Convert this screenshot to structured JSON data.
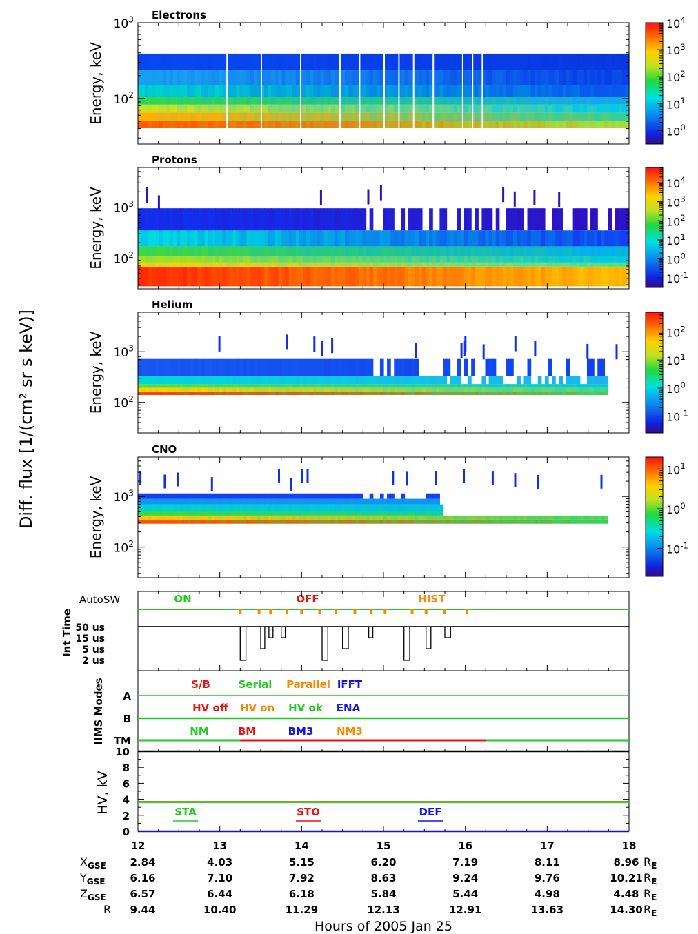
{
  "figure": {
    "ylabel": "Diff. flux [1/(cm² sr s keV)]",
    "xlabel": "Hours of 2005 Jan 25"
  },
  "colors": {
    "on": "#22cc22",
    "off": "#ee1111",
    "hist": "#ff8800",
    "blue": "#1111ee",
    "ok": "#22cc22",
    "axis": "#000000"
  },
  "chart_data": [
    {
      "type": "heatmap",
      "title": "Electrons",
      "ylabel": "Energy, keV",
      "yscale": "log",
      "ylim": [
        25,
        1000
      ],
      "y_ticks": [
        {
          "label": "10",
          "exp": "2",
          "value": 100
        },
        {
          "label": "10",
          "exp": "3",
          "value": 1000
        }
      ],
      "x": [
        12,
        18
      ],
      "energy_bands_keV": [
        [
          41,
          51
        ],
        [
          51,
          65
        ],
        [
          65,
          83
        ],
        [
          83,
          105
        ],
        [
          105,
          150
        ],
        [
          150,
          240
        ],
        [
          240,
          390
        ]
      ],
      "band_colors_start": [
        "#ff5a00",
        "#ffb000",
        "#d0e020",
        "#30d850",
        "#00d0d0",
        "#18a0f0",
        "#0848f0"
      ],
      "band_colors_end": [
        "#a0e040",
        "#30d0a0",
        "#00c8e8",
        "#10a8f0",
        "#0858f0",
        "#0840e8",
        "#0838e0"
      ],
      "colorbar": {
        "ticks": [
          {
            "label": "10",
            "exp": "0"
          },
          {
            "label": "10",
            "exp": "1"
          },
          {
            "label": "10",
            "exp": "2"
          },
          {
            "label": "10",
            "exp": "3"
          },
          {
            "label": "10",
            "exp": "4"
          }
        ],
        "range_log": [
          -0.5,
          4
        ]
      }
    },
    {
      "type": "heatmap",
      "title": "Protons",
      "ylabel": "Energy, keV",
      "yscale": "log",
      "ylim": [
        25,
        6000
      ],
      "y_ticks": [
        {
          "label": "10",
          "exp": "2",
          "value": 100
        },
        {
          "label": "10",
          "exp": "3",
          "value": 1000
        }
      ],
      "x": [
        12,
        18
      ],
      "energy_bands_keV": [
        [
          28,
          68
        ],
        [
          68,
          82
        ],
        [
          82,
          110
        ],
        [
          110,
          170
        ],
        [
          170,
          350
        ],
        [
          350,
          950
        ]
      ],
      "band_colors_start": [
        "#ff2a00",
        "#ffd000",
        "#a8e020",
        "#40d840",
        "#00d8e0",
        "#1030f0"
      ],
      "band_colors_end": [
        "#ffc000",
        "#40e0a0",
        "#00c8e0",
        "#00b0f0",
        "#1040f0",
        "#3010c0"
      ],
      "colorbar": {
        "ticks": [
          {
            "label": "10",
            "exp": "-1"
          },
          {
            "label": "10",
            "exp": "0"
          },
          {
            "label": "10",
            "exp": "1"
          },
          {
            "label": "10",
            "exp": "2"
          },
          {
            "label": "10",
            "exp": "3"
          },
          {
            "label": "10",
            "exp": "4"
          }
        ],
        "range_log": [
          -1.5,
          4.8
        ]
      }
    },
    {
      "type": "heatmap",
      "title": "Helium",
      "ylabel": "Energy, keV",
      "yscale": "log",
      "ylim": [
        25,
        6000
      ],
      "y_ticks": [
        {
          "label": "10",
          "exp": "2",
          "value": 100
        },
        {
          "label": "10",
          "exp": "3",
          "value": 1000
        }
      ],
      "x": [
        12,
        18
      ],
      "energy_bands_keV": [
        [
          140,
          160
        ],
        [
          160,
          195
        ],
        [
          195,
          230
        ],
        [
          230,
          330
        ],
        [
          330,
          720
        ]
      ],
      "band_colors_start": [
        "#ff4000",
        "#ffd000",
        "#50e040",
        "#00d8d8",
        "#1858f0"
      ],
      "band_colors_end": [
        "#40d860",
        "#30d8a0",
        "#00c8e0",
        "#20b0f0",
        "#1040f0"
      ],
      "colorbar": {
        "ticks": [
          {
            "label": "10",
            "exp": "-1"
          },
          {
            "label": "10",
            "exp": "0"
          },
          {
            "label": "10",
            "exp": "1"
          },
          {
            "label": "10",
            "exp": "2"
          }
        ],
        "range_log": [
          -1.6,
          2.7
        ]
      }
    },
    {
      "type": "heatmap",
      "title": "CNO",
      "ylabel": "Energy, keV",
      "yscale": "log",
      "ylim": [
        25,
        6000
      ],
      "y_ticks": [
        {
          "label": "10",
          "exp": "2",
          "value": 100
        },
        {
          "label": "10",
          "exp": "3",
          "value": 1000
        }
      ],
      "x": [
        12,
        18
      ],
      "energy_bands_keV": [
        [
          290,
          350
        ],
        [
          350,
          420
        ],
        [
          420,
          520
        ],
        [
          520,
          700
        ],
        [
          700,
          900
        ],
        [
          900,
          1150
        ]
      ],
      "band_colors_start": [
        "#ff5000",
        "#ffc800",
        "#40d840",
        "#00d0d0",
        "#1098f0",
        "#1840f0"
      ],
      "band_colors_end": [
        "#30d860",
        "#30d860",
        "#00c8d0",
        "#00b8f0",
        "#1090f0",
        "#1840f0"
      ],
      "colorbar": {
        "ticks": [
          {
            "label": "10",
            "exp": "-1"
          },
          {
            "label": "10",
            "exp": "0"
          },
          {
            "label": "10",
            "exp": "1"
          }
        ],
        "range_log": [
          -1.7,
          1.3
        ]
      }
    }
  ],
  "status_panel": {
    "autosw_label": "AutoSW",
    "inttime_axis": "Int Time",
    "inttime_ticks": [
      "50 us",
      "15 us",
      "5 us",
      "2 us"
    ],
    "legend": [
      {
        "text": "ON",
        "color": "#22cc22"
      },
      {
        "text": "OFF",
        "color": "#ee1111"
      },
      {
        "text": "HIST",
        "color": "#ff8800"
      }
    ],
    "hist_ticks_hours": [
      13.25,
      13.48,
      13.62,
      13.82,
      14.0,
      14.22,
      14.42,
      14.65,
      14.85,
      15.02,
      15.35,
      15.52,
      15.75,
      16.02
    ]
  },
  "modes_panel": {
    "axis": "IIMS Modes",
    "row_labels": [
      "A",
      "B",
      "TM"
    ],
    "row_a_legend": [
      {
        "text": "S/B",
        "color": "#ee1111"
      },
      {
        "text": "Serial",
        "color": "#22cc22"
      },
      {
        "text": "Parallel",
        "color": "#ff8800"
      },
      {
        "text": "IFFT",
        "color": "#1111ee"
      }
    ],
    "row_b_legend": [
      {
        "text": "HV  off",
        "color": "#ee1111"
      },
      {
        "text": "HV  on",
        "color": "#ff8800"
      },
      {
        "text": "HV  ok",
        "color": "#22cc22"
      },
      {
        "text": "ENA",
        "color": "#1111ee"
      }
    ],
    "row_tm_legend": [
      {
        "text": "NM",
        "color": "#22cc22"
      },
      {
        "text": "BM",
        "color": "#ee1111"
      },
      {
        "text": "BM3",
        "color": "#1111ee"
      },
      {
        "text": "NM3",
        "color": "#ff8800"
      }
    ],
    "tm_bm_interval_hours": [
      13.25,
      16.25
    ]
  },
  "hv_panel": {
    "axis": "HV, kV",
    "ylim": [
      0,
      10
    ],
    "y_ticks": [
      "0",
      "2",
      "4",
      "6",
      "8",
      "10"
    ],
    "hv_level_kV": 3.7,
    "legend": [
      {
        "text": "STA",
        "color": "#22cc22"
      },
      {
        "text": "STO",
        "color": "#ee1111"
      },
      {
        "text": "DEF",
        "color": "#1111ee"
      }
    ]
  },
  "x_axis": {
    "ticks": [
      "12",
      "13",
      "14",
      "15",
      "16",
      "17",
      "18"
    ],
    "ephemeris": [
      {
        "name": "X",
        "sub": "GSE",
        "values": [
          "2.84",
          "4.03",
          "5.15",
          "6.20",
          "7.19",
          "8.11",
          "8.96"
        ]
      },
      {
        "name": "Y",
        "sub": "GSE",
        "values": [
          "6.16",
          "7.10",
          "7.92",
          "8.63",
          "9.24",
          "9.76",
          "10.21"
        ]
      },
      {
        "name": "Z",
        "sub": "GSE",
        "values": [
          "6.57",
          "6.44",
          "6.18",
          "5.84",
          "5.44",
          "4.98",
          "4.48"
        ]
      },
      {
        "name": "R",
        "sub": "",
        "values": [
          "9.44",
          "10.40",
          "11.29",
          "12.13",
          "12.91",
          "13.63",
          "14.30"
        ]
      }
    ],
    "unit": "R",
    "unit_sub": "E"
  }
}
